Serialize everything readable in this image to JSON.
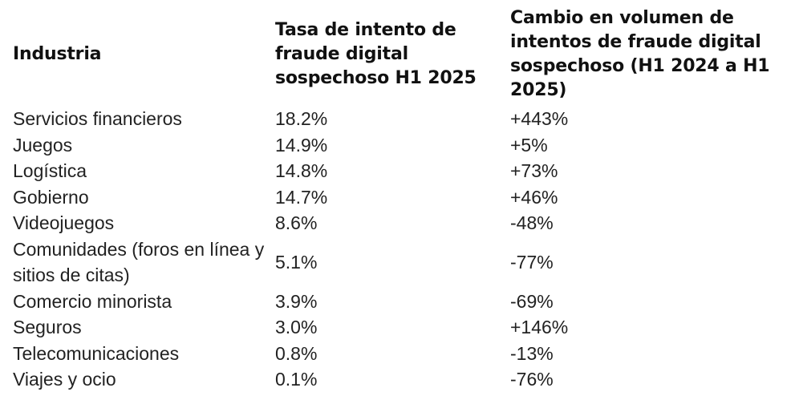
{
  "table": {
    "headers": [
      "Industria",
      "Tasa de intento de fraude digital sospechoso H1 2025",
      "Cambio en volumen de intentos de fraude digital sospechoso (H1 2024 a H1 2025)"
    ],
    "rows": [
      [
        "Servicios financieros",
        "18.2%",
        "+443%"
      ],
      [
        "Juegos",
        "14.9%",
        "+5%"
      ],
      [
        "Logística",
        "14.8%",
        "+73%"
      ],
      [
        "Gobierno",
        "14.7%",
        "+46%"
      ],
      [
        "Videojuegos",
        "8.6%",
        "-48%"
      ],
      [
        "Comunidades (foros en línea y sitios de citas)",
        "5.1%",
        "-77%"
      ],
      [
        "Comercio minorista",
        "3.9%",
        "-69%"
      ],
      [
        "Seguros",
        "3.0%",
        "+146%"
      ],
      [
        "Telecomunicaciones",
        "0.8%",
        "-13%"
      ],
      [
        "Viajes y ocio",
        "0.1%",
        "-76%"
      ]
    ]
  }
}
